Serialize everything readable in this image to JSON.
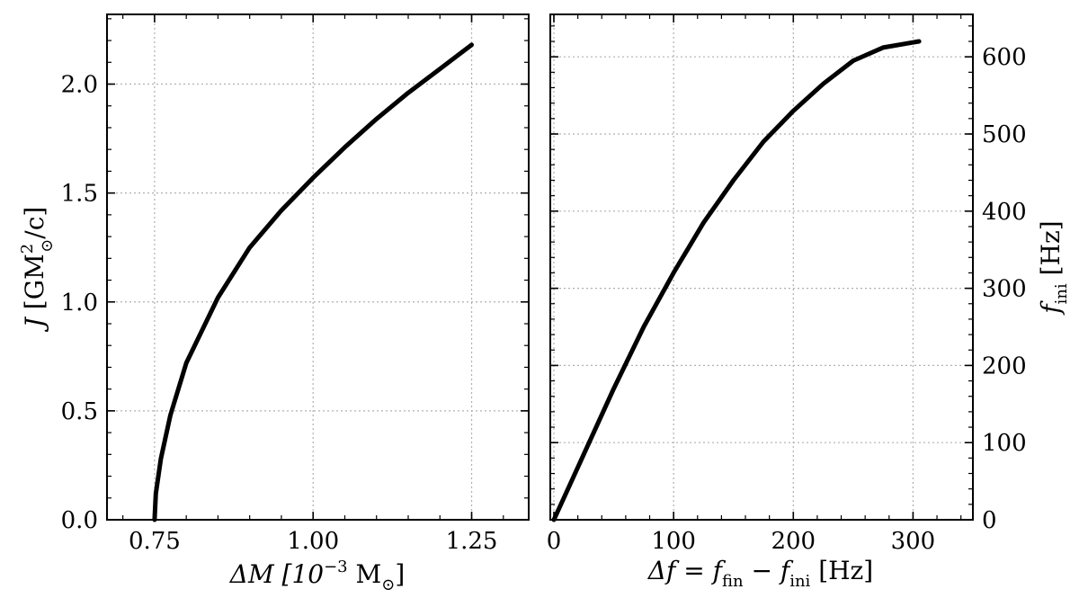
{
  "chart_data": [
    {
      "type": "line",
      "xlabel_parts": [
        "ΔM [10",
        "−3",
        " M",
        "⊙",
        "]"
      ],
      "ylabel_parts": [
        "J",
        " [GM",
        "2",
        "⊙",
        "/c]"
      ],
      "xlim": [
        0.675,
        1.34
      ],
      "ylim": [
        0.0,
        2.32
      ],
      "xticks": [
        0.75,
        1.0,
        1.25
      ],
      "xtick_labels": [
        "0.75",
        "1.00",
        "1.25"
      ],
      "yticks": [
        0.0,
        0.5,
        1.0,
        1.5,
        2.0
      ],
      "ytick_labels": [
        "0.0",
        "0.5",
        "1.0",
        "1.5",
        "2.0"
      ],
      "grid": true,
      "series": [
        {
          "x": [
            0.75,
            0.752,
            0.76,
            0.775,
            0.8,
            0.85,
            0.9,
            0.95,
            1.0,
            1.05,
            1.1,
            1.15,
            1.2,
            1.25
          ],
          "y": [
            0.0,
            0.12,
            0.28,
            0.48,
            0.72,
            1.02,
            1.25,
            1.42,
            1.57,
            1.71,
            1.84,
            1.96,
            2.07,
            2.18
          ]
        }
      ]
    },
    {
      "type": "line",
      "xlabel_parts": [
        "Δf = f",
        "fin",
        " − f",
        "ini",
        " [Hz]"
      ],
      "ylabel_parts": [
        "f",
        "ini",
        " [Hz]"
      ],
      "xlim": [
        -3,
        350
      ],
      "ylim": [
        0,
        655
      ],
      "xticks": [
        0,
        100,
        200,
        300
      ],
      "xtick_labels": [
        "0",
        "100",
        "200",
        "300"
      ],
      "yticks": [
        0,
        100,
        200,
        300,
        400,
        500,
        600
      ],
      "ytick_labels": [
        "0",
        "100",
        "200",
        "300",
        "400",
        "500",
        "600"
      ],
      "grid": true,
      "y_axis_side": "right",
      "series": [
        {
          "x": [
            0,
            25,
            50,
            75,
            100,
            125,
            150,
            175,
            200,
            225,
            250,
            275,
            305
          ],
          "y": [
            0,
            85,
            170,
            250,
            320,
            385,
            440,
            490,
            530,
            565,
            595,
            612,
            620
          ]
        }
      ]
    }
  ]
}
